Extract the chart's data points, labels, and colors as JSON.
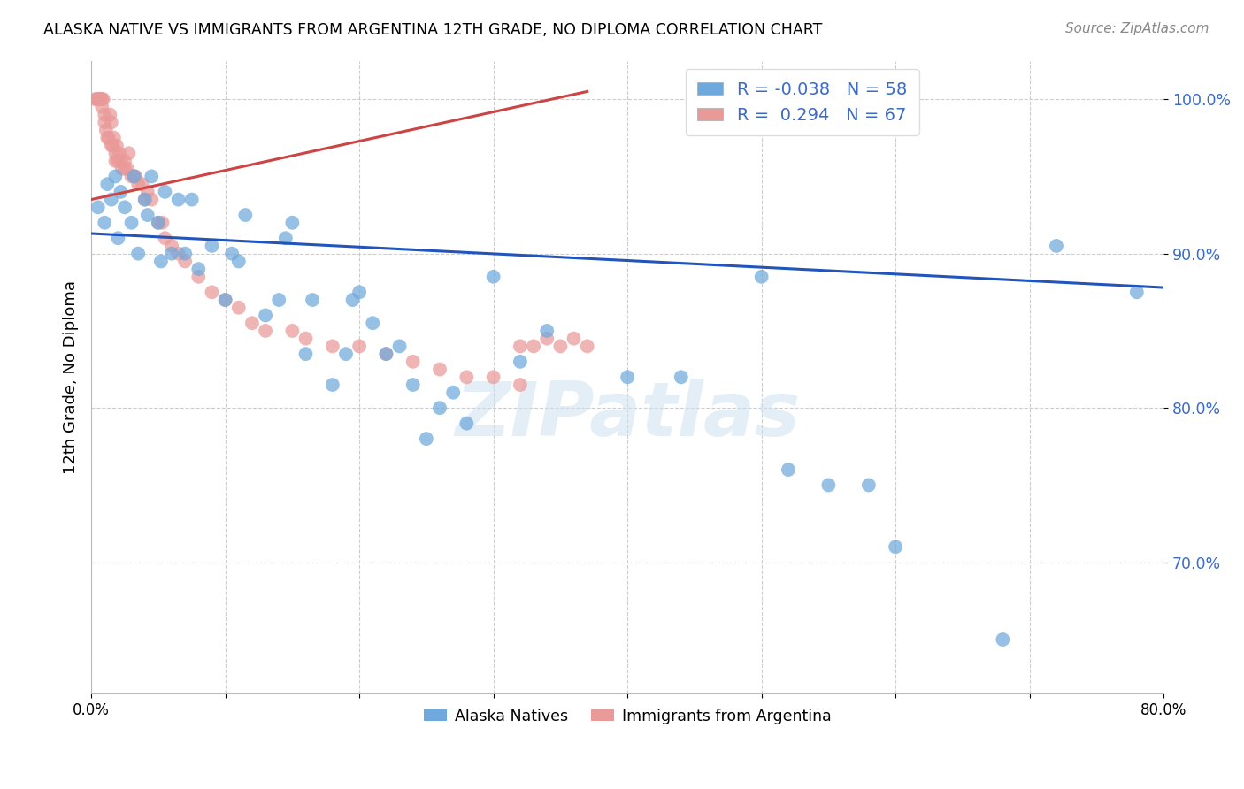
{
  "title": "ALASKA NATIVE VS IMMIGRANTS FROM ARGENTINA 12TH GRADE, NO DIPLOMA CORRELATION CHART",
  "source": "Source: ZipAtlas.com",
  "ylabel": "12th Grade, No Diploma",
  "xlim": [
    0.0,
    0.8
  ],
  "ylim": [
    0.615,
    1.025
  ],
  "yticks": [
    0.7,
    0.8,
    0.9,
    1.0
  ],
  "ytick_labels": [
    "70.0%",
    "80.0%",
    "90.0%",
    "100.0%"
  ],
  "xticks": [
    0.0,
    0.1,
    0.2,
    0.3,
    0.4,
    0.5,
    0.6,
    0.7,
    0.8
  ],
  "xtick_labels": [
    "0.0%",
    "",
    "",
    "",
    "",
    "",
    "",
    "",
    "80.0%"
  ],
  "blue_color": "#6fa8dc",
  "pink_color": "#ea9999",
  "trendline_blue": "#2255bb",
  "trendline_pink": "#cc4444",
  "R_blue": -0.038,
  "N_blue": 58,
  "R_pink": 0.294,
  "N_pink": 67,
  "watermark": "ZIPatlas",
  "blue_x": [
    0.005,
    0.01,
    0.012,
    0.015,
    0.018,
    0.02,
    0.022,
    0.025,
    0.03,
    0.032,
    0.035,
    0.04,
    0.042,
    0.045,
    0.05,
    0.052,
    0.055,
    0.06,
    0.065,
    0.07,
    0.075,
    0.08,
    0.09,
    0.1,
    0.105,
    0.11,
    0.115,
    0.13,
    0.14,
    0.145,
    0.15,
    0.16,
    0.165,
    0.18,
    0.19,
    0.195,
    0.2,
    0.21,
    0.22,
    0.23,
    0.24,
    0.25,
    0.26,
    0.27,
    0.28,
    0.3,
    0.32,
    0.34,
    0.4,
    0.44,
    0.5,
    0.52,
    0.55,
    0.58,
    0.6,
    0.68,
    0.72,
    0.78
  ],
  "blue_y": [
    0.93,
    0.92,
    0.945,
    0.935,
    0.95,
    0.91,
    0.94,
    0.93,
    0.92,
    0.95,
    0.9,
    0.935,
    0.925,
    0.95,
    0.92,
    0.895,
    0.94,
    0.9,
    0.935,
    0.9,
    0.935,
    0.89,
    0.905,
    0.87,
    0.9,
    0.895,
    0.925,
    0.86,
    0.87,
    0.91,
    0.92,
    0.835,
    0.87,
    0.815,
    0.835,
    0.87,
    0.875,
    0.855,
    0.835,
    0.84,
    0.815,
    0.78,
    0.8,
    0.81,
    0.79,
    0.885,
    0.83,
    0.85,
    0.82,
    0.82,
    0.885,
    0.76,
    0.75,
    0.75,
    0.71,
    0.65,
    0.905,
    0.875
  ],
  "pink_x": [
    0.003,
    0.004,
    0.005,
    0.006,
    0.006,
    0.007,
    0.007,
    0.008,
    0.008,
    0.009,
    0.01,
    0.01,
    0.011,
    0.012,
    0.013,
    0.014,
    0.015,
    0.015,
    0.016,
    0.017,
    0.018,
    0.018,
    0.019,
    0.02,
    0.021,
    0.022,
    0.023,
    0.025,
    0.025,
    0.027,
    0.028,
    0.03,
    0.032,
    0.033,
    0.035,
    0.038,
    0.04,
    0.042,
    0.045,
    0.05,
    0.053,
    0.055,
    0.06,
    0.065,
    0.07,
    0.08,
    0.09,
    0.1,
    0.11,
    0.12,
    0.13,
    0.15,
    0.16,
    0.18,
    0.2,
    0.22,
    0.24,
    0.26,
    0.28,
    0.3,
    0.32,
    0.32,
    0.33,
    0.34,
    0.35,
    0.36,
    0.37
  ],
  "pink_y": [
    1.0,
    1.0,
    1.0,
    1.0,
    1.0,
    1.0,
    1.0,
    1.0,
    0.995,
    1.0,
    0.99,
    0.985,
    0.98,
    0.975,
    0.975,
    0.99,
    0.97,
    0.985,
    0.97,
    0.975,
    0.965,
    0.96,
    0.97,
    0.96,
    0.965,
    0.96,
    0.955,
    0.96,
    0.955,
    0.955,
    0.965,
    0.95,
    0.95,
    0.95,
    0.945,
    0.945,
    0.935,
    0.94,
    0.935,
    0.92,
    0.92,
    0.91,
    0.905,
    0.9,
    0.895,
    0.885,
    0.875,
    0.87,
    0.865,
    0.855,
    0.85,
    0.85,
    0.845,
    0.84,
    0.84,
    0.835,
    0.83,
    0.825,
    0.82,
    0.82,
    0.815,
    0.84,
    0.84,
    0.845,
    0.84,
    0.845,
    0.84
  ],
  "blue_trend_x": [
    0.0,
    0.8
  ],
  "blue_trend_y": [
    0.913,
    0.878
  ],
  "pink_trend_x": [
    0.0,
    0.37
  ],
  "pink_trend_y": [
    0.935,
    1.005
  ]
}
